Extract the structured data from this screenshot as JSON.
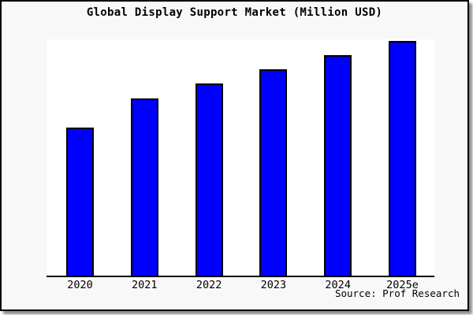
{
  "title": "Global Display Support Market (Million USD)",
  "source": "Source: Prof Research",
  "colors": {
    "bar_fill": "#0000ff",
    "bar_border": "#000000",
    "canvas_background": "#f8f8f8",
    "plot_background": "#ffffff",
    "axis_line": "#000000",
    "frame_border": "#000000"
  },
  "chart_data": {
    "type": "bar",
    "title": "Global Display Support Market (Million USD)",
    "categories": [
      "2020",
      "2021",
      "2022",
      "2023",
      "2024",
      "2025e"
    ],
    "values": [
      63,
      75.5,
      82,
      88,
      94,
      100
    ],
    "ylim": [
      0,
      100
    ],
    "xlabel": "",
    "ylabel": "",
    "y_axis_visible": false,
    "gridlines": false,
    "legend": false,
    "annotations": [
      "Source: Prof Research"
    ]
  }
}
